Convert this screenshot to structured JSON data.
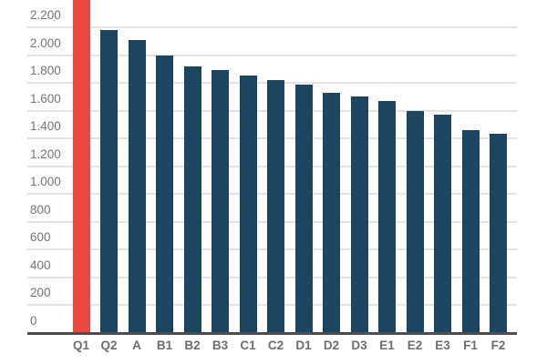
{
  "chart_data": {
    "type": "bar",
    "title": "",
    "xlabel": "",
    "ylabel": "",
    "categories": [
      "Q1",
      "Q2",
      "A",
      "B1",
      "B2",
      "B3",
      "C1",
      "C2",
      "D1",
      "D2",
      "D3",
      "E1",
      "E2",
      "E3",
      "F1",
      "F2"
    ],
    "values": [
      2420,
      2180,
      2110,
      2000,
      1920,
      1890,
      1850,
      1820,
      1790,
      1730,
      1700,
      1670,
      1600,
      1570,
      1460,
      1430
    ],
    "highlight": {
      "index": 0,
      "clipped_at_top": true,
      "note": "Q1 bar is red and runs off the top edge of the image; its exact value is not shown"
    },
    "ylim": [
      0,
      2420
    ],
    "y_ticks": [
      {
        "value": 0,
        "label": "0"
      },
      {
        "value": 200,
        "label": "200"
      },
      {
        "value": 400,
        "label": "400"
      },
      {
        "value": 600,
        "label": "600"
      },
      {
        "value": 800,
        "label": "800"
      },
      {
        "value": 1000,
        "label": "1.000"
      },
      {
        "value": 1200,
        "label": "1.200"
      },
      {
        "value": 1400,
        "label": "1.400"
      },
      {
        "value": 1600,
        "label": "1.600"
      },
      {
        "value": 1800,
        "label": "1.800"
      },
      {
        "value": 2000,
        "label": "2.000"
      },
      {
        "value": 2200,
        "label": "2.200"
      }
    ],
    "grid": true,
    "legend": false,
    "colors": {
      "bar": "#1b4560",
      "highlight_bar": "#ee4843",
      "gridline": "#e4e4e4",
      "axis_line": "#4d4d4d",
      "y_tick_label": "#757575",
      "x_tick_label": "#6e6e6e",
      "background": "#ffffff"
    }
  }
}
